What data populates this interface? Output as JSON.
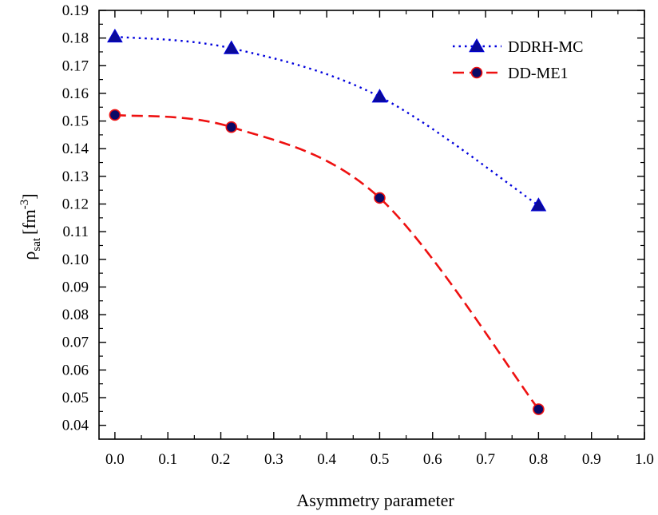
{
  "chart_data": {
    "type": "line",
    "title": "",
    "xlabel": "Asymmetry parameter",
    "ylabel": {
      "main": "ρ",
      "sub": "sat",
      "unit_open": "[fm",
      "unit_sup": "-3",
      "unit_close": "]"
    },
    "xlim": [
      -0.03,
      1.0
    ],
    "ylim": [
      0.035,
      0.19
    ],
    "xticks": [
      0.0,
      0.1,
      0.2,
      0.3,
      0.4,
      0.5,
      0.6,
      0.7,
      0.8,
      0.9,
      1.0
    ],
    "xtick_labels": [
      "0.0",
      "0.1",
      "0.2",
      "0.3",
      "0.4",
      "0.5",
      "0.6",
      "0.7",
      "0.8",
      "0.9",
      "1.0"
    ],
    "yticks": [
      0.04,
      0.05,
      0.06,
      0.07,
      0.08,
      0.09,
      0.1,
      0.11,
      0.12,
      0.13,
      0.14,
      0.15,
      0.16,
      0.17,
      0.18,
      0.19
    ],
    "ytick_labels": [
      "0.04",
      "0.05",
      "0.06",
      "0.07",
      "0.08",
      "0.09",
      "0.10",
      "0.11",
      "0.12",
      "0.13",
      "0.14",
      "0.15",
      "0.16",
      "0.17",
      "0.18",
      "0.19"
    ],
    "grid": false,
    "legend_position": "top-right",
    "series": [
      {
        "name": "DDRH-MC",
        "x": [
          0.0,
          0.22,
          0.5,
          0.8
        ],
        "values": [
          0.1805,
          0.1763,
          0.1588,
          0.1195
        ],
        "color": "#0000dd",
        "marker": "triangle",
        "marker_fill": "#0a0a99",
        "line_style": "dotted"
      },
      {
        "name": "DD-ME1",
        "x": [
          0.0,
          0.22,
          0.5,
          0.8
        ],
        "values": [
          0.1522,
          0.1478,
          0.1222,
          0.0458
        ],
        "color": "#ee1111",
        "marker": "circle",
        "marker_fill": "#0a0a66",
        "line_style": "dashed"
      }
    ]
  }
}
